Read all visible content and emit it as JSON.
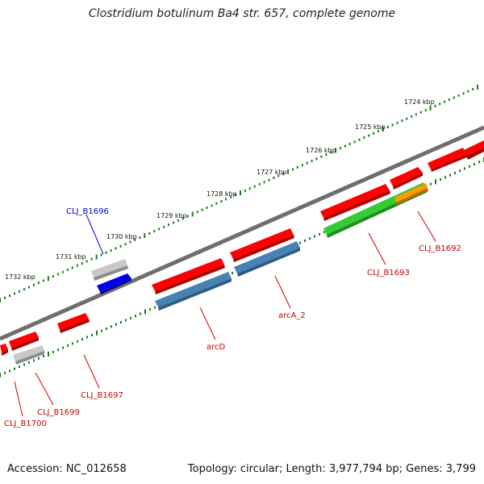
{
  "title": "Clostridium botulinum Ba4 str. 657, complete genome",
  "footer": {
    "accession": "Accession: NC_012658",
    "summary": "Topology: circular; Length: 3,977,794 bp; Genes: 3,799"
  },
  "colors": {
    "backbone": "#808080",
    "tick": "#1e7a1e",
    "red_gene": "#ff0000",
    "grey_gene": "#b4b4b4",
    "blue_gene": "#0000ee",
    "steel_gene": "#4682b4",
    "green_gene": "#33cc33",
    "orange_gene": "#ff9900",
    "label_red": "#cc0000",
    "label_blue": "#0000cc"
  },
  "kbp_labels": [
    "1724 kbp",
    "1725 kbp",
    "1726 kbp",
    "1727 kbp",
    "1728 kbp",
    "1729 kbp",
    "1730 kbp",
    "1731 kbp",
    "1732 kbp"
  ],
  "gene_labels": [
    "CLJ_B1696",
    "arcD",
    "arcA_2",
    "CLJ_B1693",
    "CLJ_B1692",
    "CLJ_B1697",
    "CLJ_B1699",
    "CLJ_B1700"
  ]
}
